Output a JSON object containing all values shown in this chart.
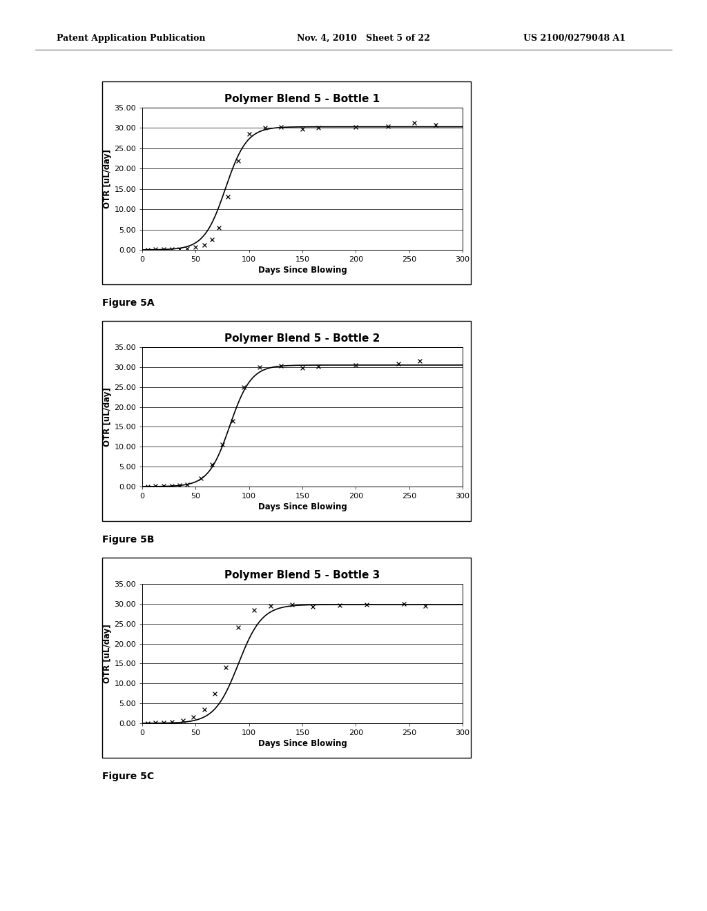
{
  "header_left": "Patent Application Publication",
  "header_mid": "Nov. 4, 2010   Sheet 5 of 22",
  "header_right": "US 2100/0279048 A1",
  "charts": [
    {
      "title": "Polymer Blend 5 - Bottle 1",
      "figure_label": "Figure 5A",
      "xlabel": "Days Since Blowing",
      "ylabel": "OTR [uL/day]",
      "xlim": [
        0,
        300
      ],
      "ylim": [
        0,
        35
      ],
      "ytick_vals": [
        0.0,
        5.0,
        10.0,
        15.0,
        20.0,
        25.0,
        30.0,
        35.0
      ],
      "xtick_vals": [
        0,
        50,
        100,
        150,
        200,
        250,
        300
      ],
      "inflection": 78,
      "k": 0.1,
      "plateau": 30.3,
      "scatter_x": [
        5,
        12,
        20,
        28,
        35,
        42,
        50,
        58,
        65,
        72,
        80,
        90,
        100,
        115,
        130,
        150,
        165,
        200,
        230,
        255,
        275
      ],
      "scatter_y": [
        0.05,
        0.1,
        0.15,
        0.2,
        0.25,
        0.4,
        0.7,
        1.2,
        2.5,
        5.5,
        13.0,
        22.0,
        28.5,
        30.0,
        30.2,
        29.8,
        30.1,
        30.3,
        30.4,
        31.2,
        30.7
      ]
    },
    {
      "title": "Polymer Blend 5 - Bottle 2",
      "figure_label": "Figure 5B",
      "xlabel": "Days Since Blowing",
      "ylabel": "OTR [uL/day]",
      "xlim": [
        0,
        300
      ],
      "ylim": [
        0,
        35
      ],
      "ytick_vals": [
        0.0,
        5.0,
        10.0,
        15.0,
        20.0,
        25.0,
        30.0,
        35.0
      ],
      "xtick_vals": [
        0,
        50,
        100,
        150,
        200,
        250,
        300
      ],
      "inflection": 82,
      "k": 0.1,
      "plateau": 30.5,
      "scatter_x": [
        5,
        12,
        20,
        28,
        35,
        42,
        55,
        65,
        75,
        85,
        95,
        110,
        130,
        150,
        165,
        200,
        240,
        260
      ],
      "scatter_y": [
        0.05,
        0.1,
        0.15,
        0.2,
        0.3,
        0.5,
        2.0,
        5.5,
        10.5,
        16.5,
        25.0,
        30.0,
        30.3,
        29.8,
        30.2,
        30.5,
        30.8,
        31.5
      ]
    },
    {
      "title": "Polymer Blend 5 - Bottle 3",
      "figure_label": "Figure 5C",
      "xlabel": "Days Since Blowing",
      "ylabel": "OTR [uL/day]",
      "xlim": [
        0,
        300
      ],
      "ylim": [
        0,
        35
      ],
      "ytick_vals": [
        0.0,
        5.0,
        10.0,
        15.0,
        20.0,
        25.0,
        30.0,
        35.0
      ],
      "xtick_vals": [
        0,
        50,
        100,
        150,
        200,
        250,
        300
      ],
      "inflection": 90,
      "k": 0.09,
      "plateau": 29.8,
      "scatter_x": [
        5,
        12,
        20,
        28,
        38,
        48,
        58,
        68,
        78,
        90,
        105,
        120,
        140,
        160,
        185,
        210,
        245,
        265
      ],
      "scatter_y": [
        0.05,
        0.1,
        0.2,
        0.4,
        0.7,
        1.5,
        3.5,
        7.5,
        14.0,
        24.0,
        28.5,
        29.5,
        29.8,
        29.3,
        29.6,
        29.8,
        30.0,
        29.5
      ]
    }
  ],
  "background_color": "#ffffff",
  "title_fontsize": 11,
  "label_fontsize": 8.5,
  "tick_fontsize": 8
}
